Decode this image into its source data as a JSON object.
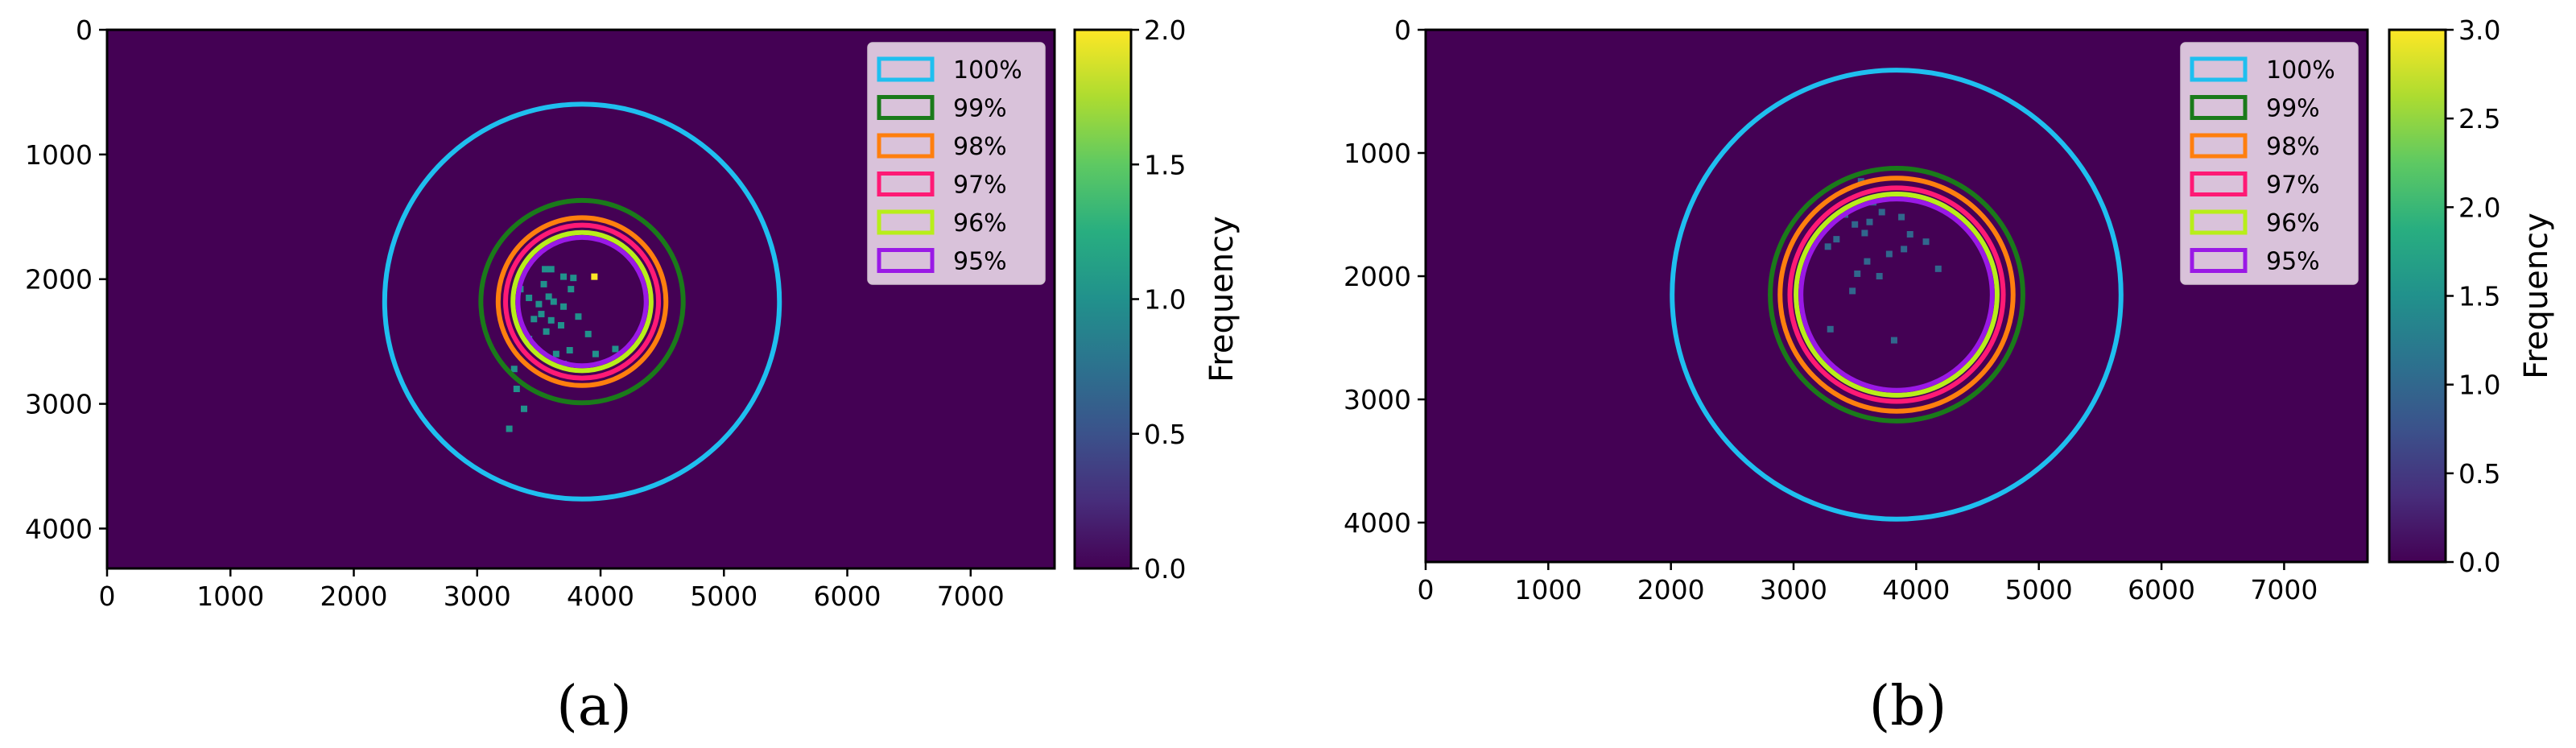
{
  "chart_data": [
    {
      "type": "heatmap",
      "panel_label": "(a)",
      "xlim": [
        0,
        7680
      ],
      "ylim": [
        4320,
        0
      ],
      "xticks": [
        "0",
        "1000",
        "2000",
        "3000",
        "4000",
        "5000",
        "6000",
        "7000"
      ],
      "yticks": [
        "0",
        "1000",
        "2000",
        "3000",
        "4000"
      ],
      "background_color": "#440154",
      "colorbar": {
        "label": "Frequency",
        "range": [
          0,
          2.0
        ],
        "ticks": [
          "0.0",
          "0.5",
          "1.0",
          "1.5",
          "2.0"
        ]
      },
      "legend": {
        "position": "top-right",
        "entries": [
          {
            "label": "100%",
            "color": "#1fbfef"
          },
          {
            "label": "99%",
            "color": "#1a7a1a"
          },
          {
            "label": "98%",
            "color": "#ff7f0e"
          },
          {
            "label": "97%",
            "color": "#ff1a75"
          },
          {
            "label": "96%",
            "color": "#b8ee1a"
          },
          {
            "label": "95%",
            "color": "#9a19e6"
          }
        ]
      },
      "circles": [
        {
          "label": "100%",
          "cx": 3850,
          "cy": 2180,
          "r": 1600
        },
        {
          "label": "99%",
          "cx": 3850,
          "cy": 2180,
          "r": 820
        },
        {
          "label": "98%",
          "cx": 3850,
          "cy": 2180,
          "r": 680
        },
        {
          "label": "97%",
          "cx": 3850,
          "cy": 2180,
          "r": 620
        },
        {
          "label": "96%",
          "cx": 3850,
          "cy": 2180,
          "r": 560
        },
        {
          "label": "95%",
          "cx": 3850,
          "cy": 2180,
          "r": 520
        }
      ],
      "points": [
        {
          "x": 3550,
          "y": 1920,
          "v": 1
        },
        {
          "x": 3600,
          "y": 1920,
          "v": 1
        },
        {
          "x": 3700,
          "y": 1980,
          "v": 1
        },
        {
          "x": 3780,
          "y": 1990,
          "v": 1
        },
        {
          "x": 3950,
          "y": 1980,
          "v": 2
        },
        {
          "x": 3350,
          "y": 2080,
          "v": 1
        },
        {
          "x": 3420,
          "y": 2150,
          "v": 1
        },
        {
          "x": 3500,
          "y": 2200,
          "v": 1
        },
        {
          "x": 3580,
          "y": 2140,
          "v": 1
        },
        {
          "x": 3620,
          "y": 2180,
          "v": 1
        },
        {
          "x": 3700,
          "y": 2220,
          "v": 1
        },
        {
          "x": 3520,
          "y": 2280,
          "v": 1
        },
        {
          "x": 3460,
          "y": 2320,
          "v": 1
        },
        {
          "x": 3600,
          "y": 2330,
          "v": 1
        },
        {
          "x": 3680,
          "y": 2370,
          "v": 1
        },
        {
          "x": 3820,
          "y": 2300,
          "v": 1
        },
        {
          "x": 3900,
          "y": 2440,
          "v": 1
        },
        {
          "x": 3560,
          "y": 2420,
          "v": 1
        },
        {
          "x": 3420,
          "y": 2480,
          "v": 1
        },
        {
          "x": 3750,
          "y": 2570,
          "v": 1
        },
        {
          "x": 3640,
          "y": 2600,
          "v": 1
        },
        {
          "x": 3960,
          "y": 2600,
          "v": 1
        },
        {
          "x": 4120,
          "y": 2560,
          "v": 1
        },
        {
          "x": 3700,
          "y": 2680,
          "v": 1
        },
        {
          "x": 3300,
          "y": 2720,
          "v": 1
        },
        {
          "x": 3320,
          "y": 2880,
          "v": 1
        },
        {
          "x": 3380,
          "y": 3040,
          "v": 1
        },
        {
          "x": 3260,
          "y": 3200,
          "v": 1
        },
        {
          "x": 3760,
          "y": 2080,
          "v": 1
        },
        {
          "x": 3540,
          "y": 2040,
          "v": 1
        }
      ]
    },
    {
      "type": "heatmap",
      "panel_label": "(b)",
      "xlim": [
        0,
        7680
      ],
      "ylim": [
        4320,
        0
      ],
      "xticks": [
        "0",
        "1000",
        "2000",
        "3000",
        "4000",
        "5000",
        "6000",
        "7000"
      ],
      "yticks": [
        "0",
        "1000",
        "2000",
        "3000",
        "4000"
      ],
      "background_color": "#440154",
      "colorbar": {
        "label": "Frequency",
        "range": [
          0,
          3.0
        ],
        "ticks": [
          "0.0",
          "0.5",
          "1.0",
          "1.5",
          "2.0",
          "2.5",
          "3.0"
        ]
      },
      "legend": {
        "position": "top-right",
        "entries": [
          {
            "label": "100%",
            "color": "#1fbfef"
          },
          {
            "label": "99%",
            "color": "#1a7a1a"
          },
          {
            "label": "98%",
            "color": "#ff7f0e"
          },
          {
            "label": "97%",
            "color": "#ff1a75"
          },
          {
            "label": "96%",
            "color": "#b8ee1a"
          },
          {
            "label": "95%",
            "color": "#9a19e6"
          }
        ]
      },
      "circles": [
        {
          "label": "100%",
          "cx": 3840,
          "cy": 2150,
          "r": 1830
        },
        {
          "label": "99%",
          "cx": 3840,
          "cy": 2150,
          "r": 1030
        },
        {
          "label": "98%",
          "cx": 3840,
          "cy": 2150,
          "r": 950
        },
        {
          "label": "97%",
          "cx": 3840,
          "cy": 2150,
          "r": 870
        },
        {
          "label": "96%",
          "cx": 3840,
          "cy": 2150,
          "r": 820
        },
        {
          "label": "95%",
          "cx": 3840,
          "cy": 2150,
          "r": 780
        }
      ],
      "points": [
        {
          "x": 3550,
          "y": 1230,
          "v": 1
        },
        {
          "x": 3650,
          "y": 1400,
          "v": 1
        },
        {
          "x": 3420,
          "y": 1500,
          "v": 1
        },
        {
          "x": 3500,
          "y": 1580,
          "v": 1
        },
        {
          "x": 3350,
          "y": 1700,
          "v": 1
        },
        {
          "x": 3580,
          "y": 1650,
          "v": 1
        },
        {
          "x": 3720,
          "y": 1480,
          "v": 1
        },
        {
          "x": 3880,
          "y": 1520,
          "v": 1
        },
        {
          "x": 3950,
          "y": 1660,
          "v": 1
        },
        {
          "x": 3900,
          "y": 1780,
          "v": 1
        },
        {
          "x": 4080,
          "y": 1720,
          "v": 1
        },
        {
          "x": 4180,
          "y": 1940,
          "v": 1
        },
        {
          "x": 3600,
          "y": 1880,
          "v": 1
        },
        {
          "x": 3520,
          "y": 1980,
          "v": 1
        },
        {
          "x": 3700,
          "y": 2000,
          "v": 1
        },
        {
          "x": 3780,
          "y": 1820,
          "v": 1
        },
        {
          "x": 3480,
          "y": 2120,
          "v": 1
        },
        {
          "x": 3280,
          "y": 1760,
          "v": 1
        },
        {
          "x": 3300,
          "y": 2430,
          "v": 1
        },
        {
          "x": 3820,
          "y": 2520,
          "v": 1
        },
        {
          "x": 3620,
          "y": 1560,
          "v": 1
        }
      ]
    }
  ]
}
